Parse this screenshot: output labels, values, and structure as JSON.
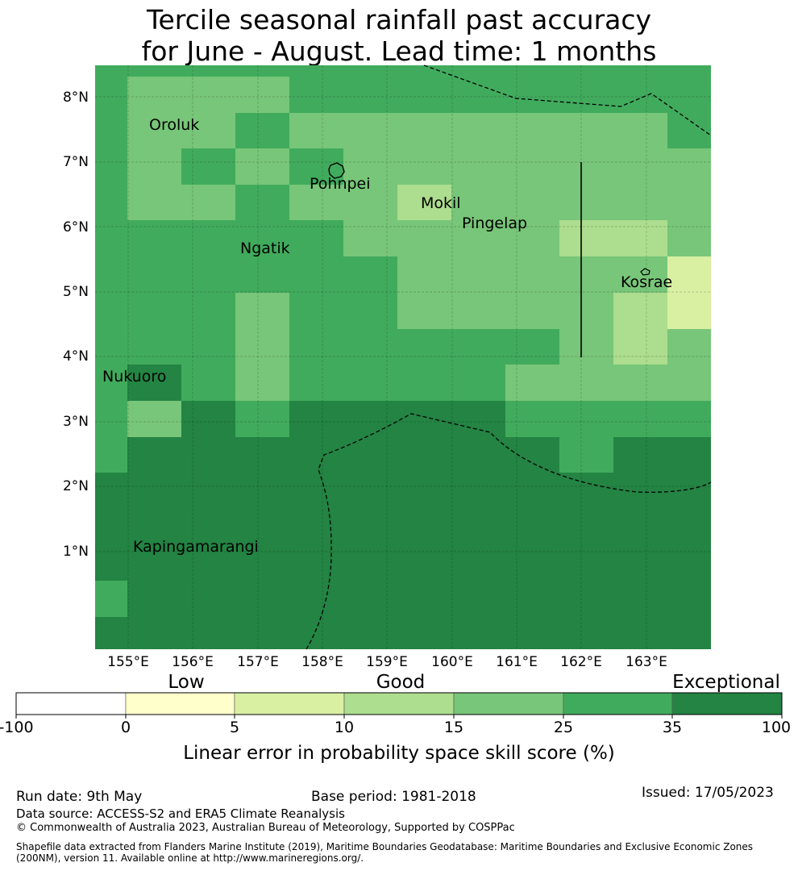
{
  "title_line1": "Tercile seasonal rainfall past accuracy",
  "title_line2": "for June - August. Lead time: 1 months",
  "map": {
    "lon_ticks": [
      "155°E",
      "156°E",
      "157°E",
      "158°E",
      "159°E",
      "160°E",
      "161°E",
      "162°E",
      "163°E"
    ],
    "lat_ticks": [
      "8°N",
      "7°N",
      "6°N",
      "5°N",
      "4°N",
      "3°N",
      "2°N",
      "1°N"
    ],
    "places": [
      "Oroluk",
      "Pohnpei",
      "Mokil",
      "Pingelap",
      "Ngatik",
      "Kosrae",
      "Nukuoro",
      "Kapingamarangi"
    ]
  },
  "legend": {
    "categories": [
      "Low",
      "Good",
      "Exceptional"
    ],
    "bounds": [
      "-100",
      "0",
      "5",
      "10",
      "15",
      "25",
      "35",
      "100"
    ],
    "colors": [
      "#ffffff",
      "#ffffcc",
      "#d9f0a3",
      "#addd8e",
      "#78c679",
      "#41ab5d",
      "#238443"
    ],
    "title": "Linear error in probability space skill score (%)"
  },
  "footer": {
    "run_date": "Run date: 9th May",
    "base_period": "Base period: 1981-2018",
    "issued": "Issued: 17/05/2023",
    "data_source": "Data source: ACCESS-S2 and ERA5 Climate Reanalysis",
    "copyright": "© Commonwealth of Australia 2023, Australian Bureau of Meteorology, Supported by COSPPac",
    "shapefile_line1": "Shapefile data extracted from Flanders Marine Institute (2019), Maritime Boundaries Geodatabase: Maritime Boundaries and Exclusive Economic Zones",
    "shapefile_line2": "(200NM), version 11. Available online at http://www.marineregions.org/."
  }
}
